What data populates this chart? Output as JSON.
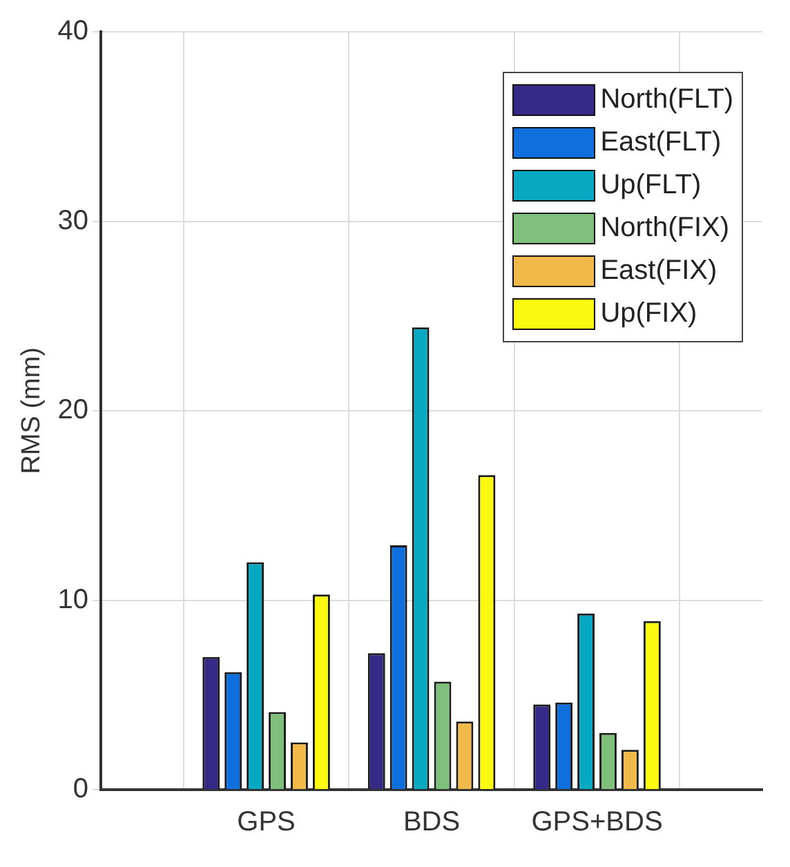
{
  "chart_data": {
    "type": "bar",
    "ylabel": "RMS (mm)",
    "categories": [
      null,
      "GPS",
      "BDS",
      "GPS+BDS",
      null
    ],
    "series": [
      {
        "name": "North(FLT)",
        "color": "#352a87",
        "values": [
          null,
          7.0,
          7.2,
          4.5,
          null
        ]
      },
      {
        "name": "East(FLT)",
        "color": "#0f6fdd",
        "values": [
          null,
          6.2,
          12.9,
          4.6,
          null
        ]
      },
      {
        "name": "Up(FLT)",
        "color": "#07a9c2",
        "values": [
          null,
          12.0,
          24.4,
          9.3,
          null
        ]
      },
      {
        "name": "North(FIX)",
        "color": "#7dbf7b",
        "values": [
          null,
          4.1,
          5.7,
          3.0,
          null
        ]
      },
      {
        "name": "East(FIX)",
        "color": "#f1b84a",
        "values": [
          null,
          2.5,
          3.6,
          2.1,
          null
        ]
      },
      {
        "name": "Up(FIX)",
        "color": "#f9fa0f",
        "values": [
          null,
          10.3,
          16.6,
          8.9,
          null
        ]
      }
    ],
    "ylim": [
      0,
      40
    ],
    "yticks": [
      0,
      10,
      20,
      30,
      40
    ],
    "grid": true,
    "legend": "top right"
  }
}
